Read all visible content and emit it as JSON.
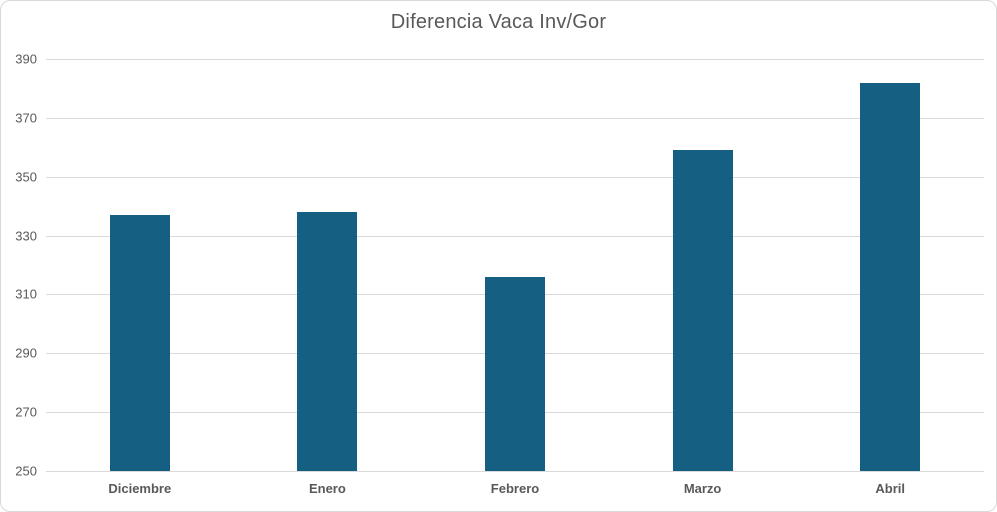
{
  "chart_data": {
    "type": "bar",
    "title": "Diferencia Vaca Inv/Gor",
    "categories": [
      "Diciembre",
      "Enero",
      "Febrero",
      "Marzo",
      "Abril"
    ],
    "values": [
      337,
      338,
      316,
      359,
      382
    ],
    "xlabel": "",
    "ylabel": "",
    "ylim": [
      250,
      390
    ],
    "yticks": [
      250,
      270,
      290,
      310,
      330,
      350,
      370,
      390
    ],
    "grid": true,
    "legend_position": "none",
    "bar_color": "#156082",
    "gridline_color": "#D9D9D9",
    "axis_line_color": "#D9D9D9",
    "text_color": "#595959",
    "background_color": "#FFFFFF",
    "border_color": "#D9D9D9"
  }
}
